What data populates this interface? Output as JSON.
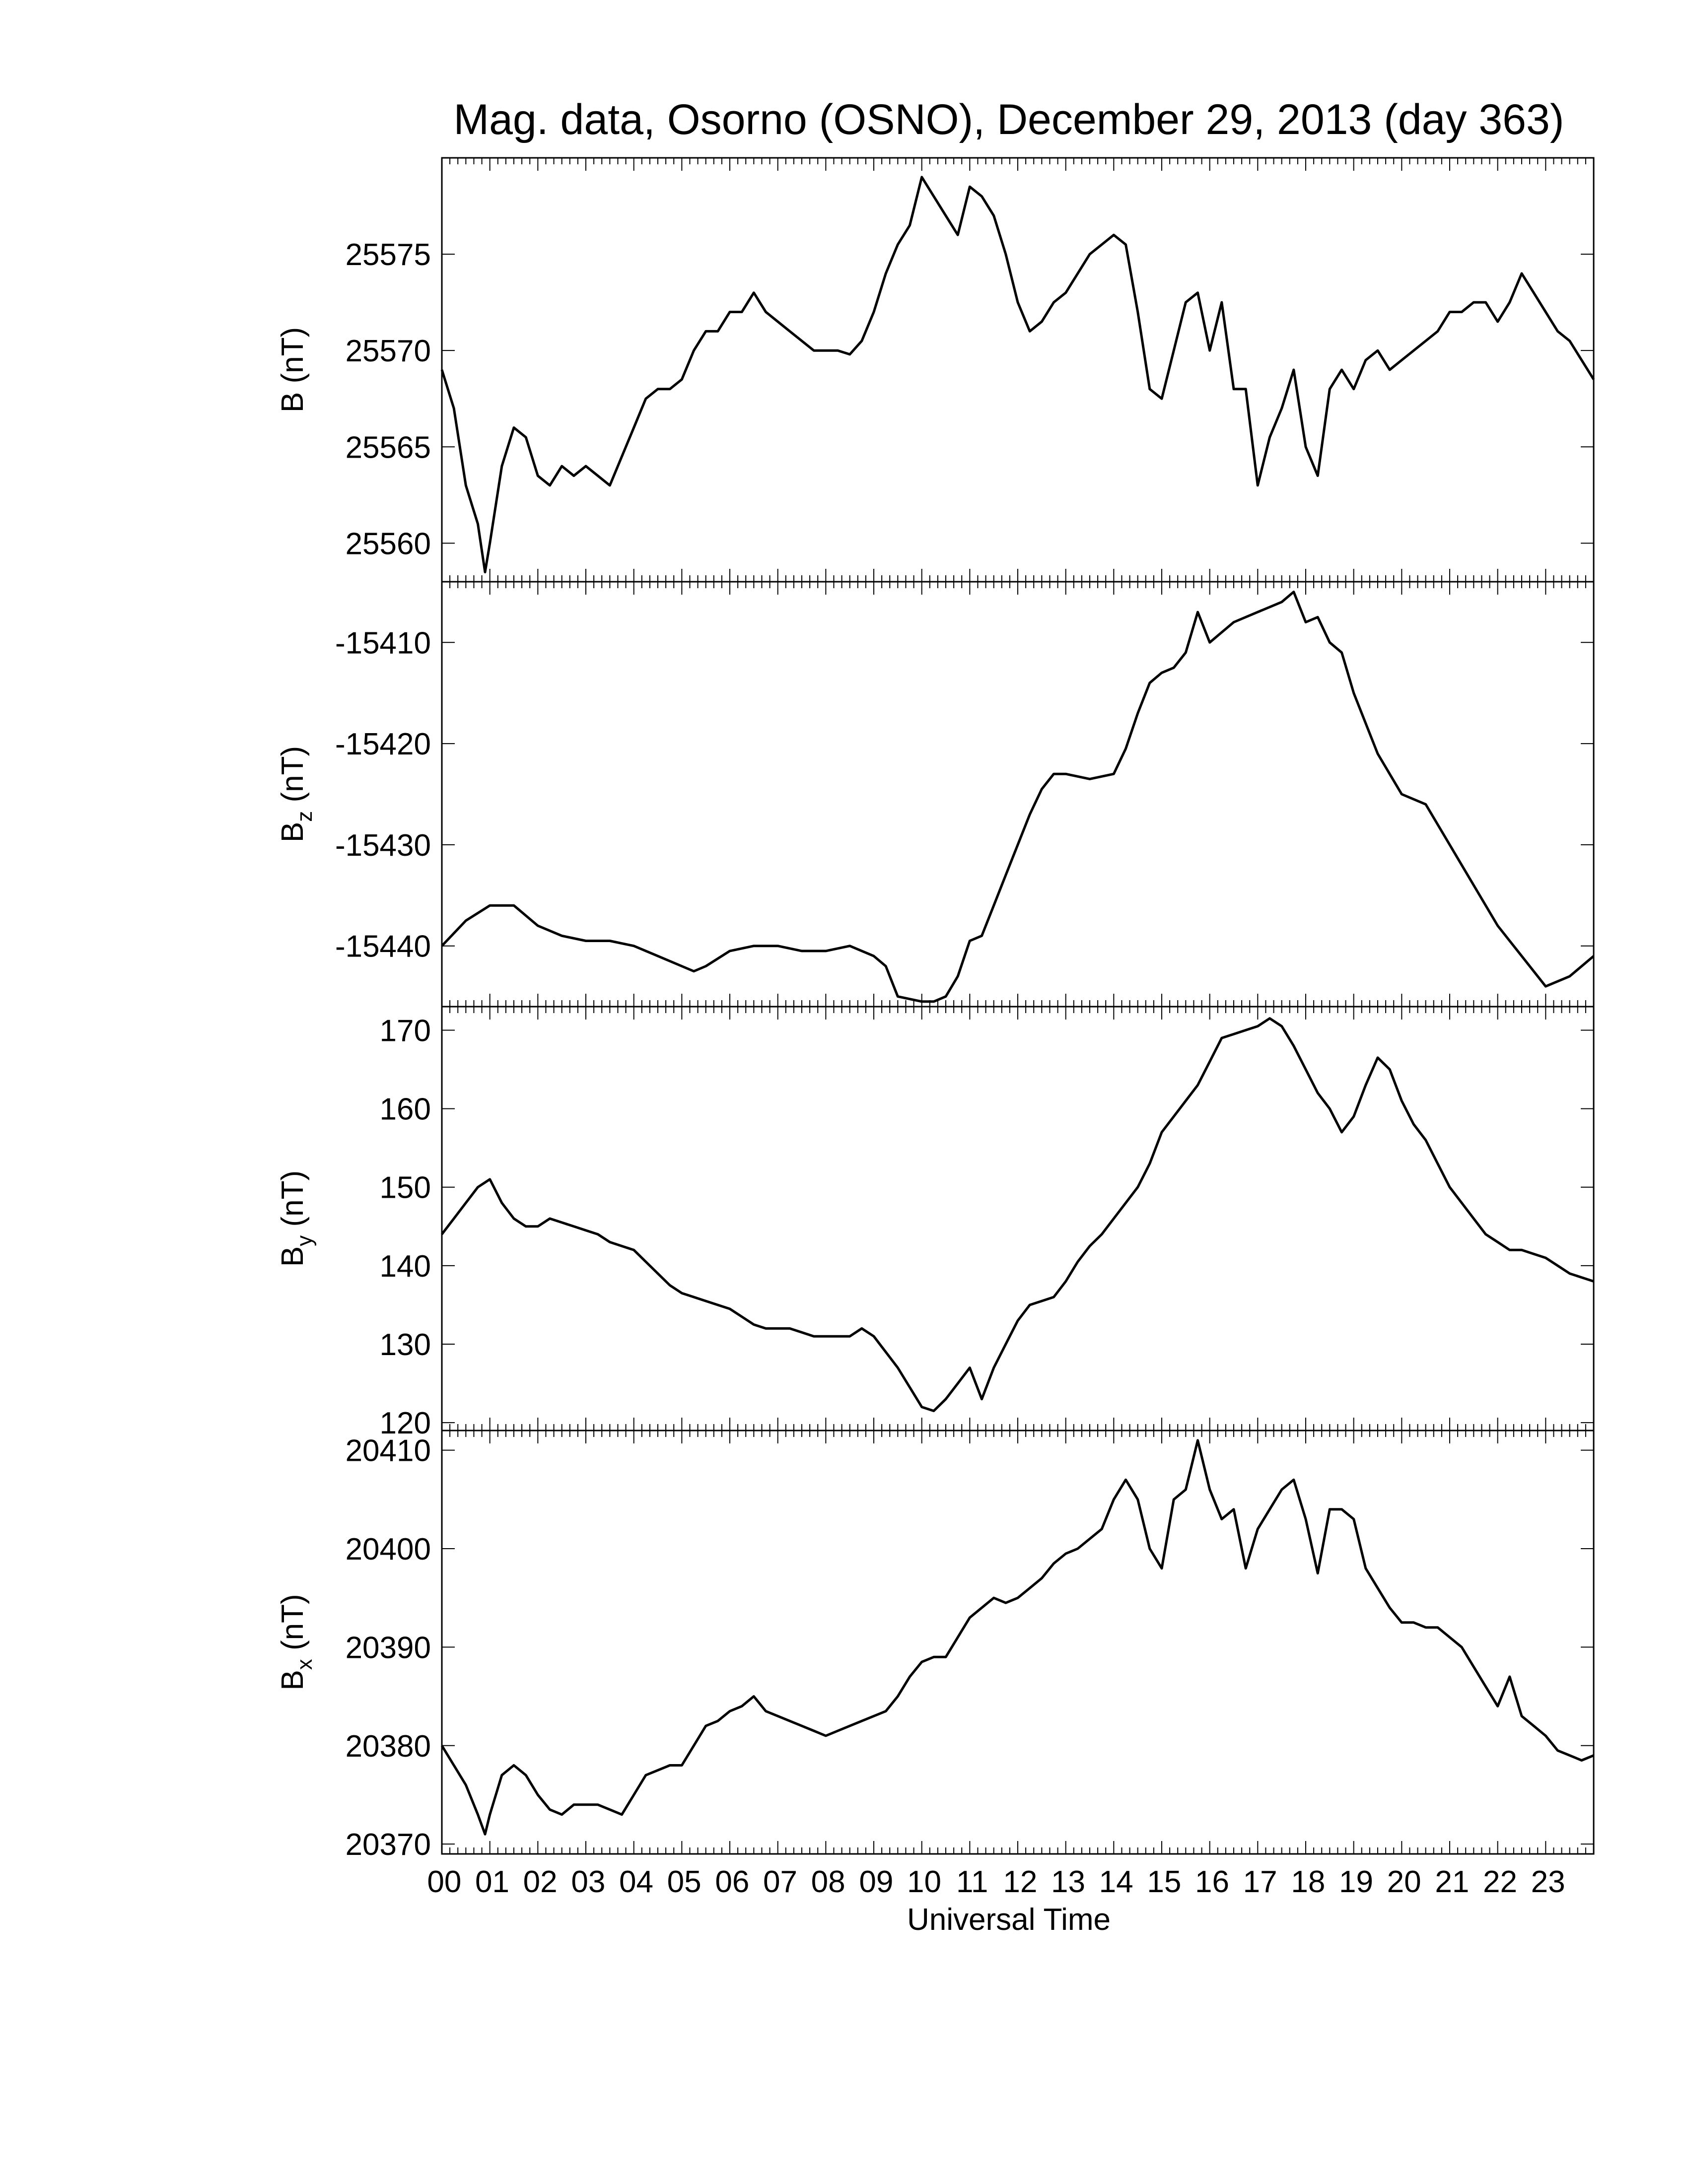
{
  "figure": {
    "title": "Mag. data, Osorno (OSNO), December 29, 2013 (day 363)",
    "xlabel": "Universal Time",
    "x_ticks": [
      "00",
      "01",
      "02",
      "03",
      "04",
      "05",
      "06",
      "07",
      "08",
      "09",
      "10",
      "11",
      "12",
      "13",
      "14",
      "15",
      "16",
      "17",
      "18",
      "19",
      "20",
      "21",
      "22",
      "23"
    ]
  },
  "chart_data": [
    {
      "type": "line",
      "ylabel_main": "B",
      "ylabel_sub": "",
      "ylabel_unit": "(nT)",
      "ylim": [
        25558,
        25580
      ],
      "yticks": [
        25560,
        25565,
        25570,
        25575
      ],
      "x": [
        0,
        0.25,
        0.5,
        0.75,
        0.9,
        1.0,
        1.25,
        1.5,
        1.75,
        2.0,
        2.25,
        2.5,
        2.75,
        3.0,
        3.25,
        3.5,
        3.75,
        4.0,
        4.25,
        4.5,
        4.75,
        5.0,
        5.25,
        5.5,
        5.75,
        6.0,
        6.25,
        6.5,
        6.75,
        7.0,
        7.25,
        7.5,
        7.75,
        8.0,
        8.25,
        8.5,
        8.75,
        9.0,
        9.25,
        9.5,
        9.75,
        10.0,
        10.25,
        10.5,
        10.75,
        11.0,
        11.25,
        11.5,
        11.75,
        12.0,
        12.25,
        12.5,
        12.75,
        13.0,
        13.25,
        13.5,
        13.75,
        14.0,
        14.25,
        14.5,
        14.75,
        15.0,
        15.25,
        15.5,
        15.75,
        16.0,
        16.25,
        16.5,
        16.75,
        17.0,
        17.25,
        17.5,
        17.75,
        18.0,
        18.25,
        18.5,
        18.75,
        19.0,
        19.25,
        19.5,
        19.75,
        20.0,
        20.25,
        20.5,
        20.75,
        21.0,
        21.25,
        21.5,
        21.75,
        22.0,
        22.25,
        22.5,
        22.75,
        23.0,
        23.25,
        23.5,
        23.75,
        24.0
      ],
      "series": [
        {
          "values": [
            25569,
            25567,
            25563,
            25561,
            25558.5,
            25560,
            25564,
            25566,
            25565.5,
            25563.5,
            25563,
            25564,
            25563.5,
            25564,
            25563.5,
            25563,
            25564.5,
            25566,
            25567.5,
            25568,
            25568,
            25568.5,
            25570,
            25571,
            25571,
            25572,
            25572,
            25573,
            25572,
            25571.5,
            25571,
            25570.5,
            25570,
            25570,
            25570,
            25569.8,
            25570.5,
            25572,
            25574,
            25575.5,
            25576.5,
            25579,
            25578,
            25577,
            25576,
            25578.5,
            25578,
            25577,
            25575,
            25572.5,
            25571,
            25571.5,
            25572.5,
            25573,
            25574,
            25575,
            25575.5,
            25576,
            25575.5,
            25572,
            25568,
            25567.5,
            25570,
            25572.5,
            25573,
            25570,
            25572.5,
            25568,
            25568,
            25563,
            25565.5,
            25567,
            25569,
            25565,
            25563.5,
            25568,
            25569,
            25568,
            25569.5,
            25570,
            25569,
            25569.5,
            25570,
            25570.5,
            25571,
            25572,
            25572,
            25572.5,
            25572.5,
            25571.5,
            25572.5,
            25574,
            25573,
            25572,
            25571,
            25570.5,
            25569.5,
            25568.5
          ]
        }
      ]
    },
    {
      "type": "line",
      "ylabel_main": "B",
      "ylabel_sub": "z",
      "ylabel_unit": "(nT)",
      "ylim": [
        -15446,
        -15404
      ],
      "yticks": [
        -15410,
        -15420,
        -15430,
        -15440
      ],
      "x": [
        0,
        0.5,
        1.0,
        1.25,
        1.5,
        1.75,
        2.0,
        2.5,
        3.0,
        3.5,
        4.0,
        4.5,
        5.0,
        5.25,
        5.5,
        6.0,
        6.5,
        7.0,
        7.5,
        8.0,
        8.5,
        9.0,
        9.25,
        9.5,
        10.0,
        10.25,
        10.5,
        10.75,
        11.0,
        11.25,
        11.5,
        11.75,
        12.0,
        12.25,
        12.5,
        12.75,
        13.0,
        13.5,
        14.0,
        14.25,
        14.5,
        14.75,
        15.0,
        15.25,
        15.5,
        15.75,
        16.0,
        16.25,
        16.5,
        17.0,
        17.5,
        17.75,
        18.0,
        18.25,
        18.5,
        18.75,
        19.0,
        19.5,
        20.0,
        20.5,
        21.0,
        21.5,
        22.0,
        22.5,
        22.75,
        23.0,
        23.5,
        24.0
      ],
      "series": [
        {
          "values": [
            -15440,
            -15437.5,
            -15436,
            -15436,
            -15436,
            -15437,
            -15438,
            -15439,
            -15439.5,
            -15439.5,
            -15440,
            -15441,
            -15442,
            -15442.5,
            -15442,
            -15440.5,
            -15440,
            -15440,
            -15440.5,
            -15440.5,
            -15440,
            -15441,
            -15442,
            -15445,
            -15445.5,
            -15445.5,
            -15445,
            -15443,
            -15439.5,
            -15439,
            -15436,
            -15433,
            -15430,
            -15427,
            -15424.5,
            -15423,
            -15423,
            -15423.5,
            -15423,
            -15420.5,
            -15417,
            -15414,
            -15413,
            -15412.5,
            -15411,
            -15407,
            -15410,
            -15409,
            -15408,
            -15407,
            -15406,
            -15405,
            -15408,
            -15407.5,
            -15410,
            -15411,
            -15415,
            -15421,
            -15425,
            -15426,
            -15430,
            -15434,
            -15438,
            -15441,
            -15442.5,
            -15444,
            -15443,
            -15441
          ]
        }
      ]
    },
    {
      "type": "line",
      "ylabel_main": "B",
      "ylabel_sub": "y",
      "ylabel_unit": "(nT)",
      "ylim": [
        119,
        173
      ],
      "yticks": [
        120,
        130,
        140,
        150,
        160,
        170
      ],
      "x": [
        0,
        0.25,
        0.5,
        0.75,
        1.0,
        1.25,
        1.5,
        1.75,
        2.0,
        2.25,
        2.5,
        2.75,
        3.0,
        3.25,
        3.5,
        3.75,
        4.0,
        4.25,
        4.5,
        4.75,
        5.0,
        5.25,
        5.5,
        5.75,
        6.0,
        6.25,
        6.5,
        6.75,
        7.0,
        7.25,
        7.5,
        7.75,
        8.0,
        8.25,
        8.5,
        8.75,
        9.0,
        9.25,
        9.5,
        9.75,
        10.0,
        10.25,
        10.5,
        10.75,
        11.0,
        11.25,
        11.5,
        11.75,
        12.0,
        12.25,
        12.5,
        12.75,
        13.0,
        13.25,
        13.5,
        13.75,
        14.0,
        14.25,
        14.5,
        14.75,
        15.0,
        15.25,
        15.5,
        15.75,
        16.0,
        16.25,
        16.5,
        16.75,
        17.0,
        17.25,
        17.5,
        17.75,
        18.0,
        18.25,
        18.5,
        18.75,
        19.0,
        19.25,
        19.5,
        19.75,
        20.0,
        20.25,
        20.5,
        20.75,
        21.0,
        21.25,
        21.5,
        21.75,
        22.0,
        22.25,
        22.5,
        22.75,
        23.0,
        23.25,
        23.5,
        23.75,
        24.0
      ],
      "series": [
        {
          "values": [
            144,
            146,
            148,
            150,
            151,
            148,
            146,
            145,
            145,
            146,
            145.5,
            145,
            144.5,
            144,
            143,
            142.5,
            142,
            140.5,
            139,
            137.5,
            136.5,
            136,
            135.5,
            135,
            134.5,
            133.5,
            132.5,
            132,
            132,
            132,
            131.5,
            131,
            131,
            131,
            131,
            132,
            131,
            129,
            127,
            124.5,
            122,
            121.5,
            123,
            125,
            127,
            123,
            127,
            130,
            133,
            135,
            135.5,
            136,
            138,
            140.5,
            142.5,
            144,
            146,
            148,
            150,
            153,
            157,
            159,
            161,
            163,
            166,
            169,
            169.5,
            170,
            170.5,
            171.5,
            170.5,
            168,
            165,
            162,
            160,
            157,
            159,
            163,
            166.5,
            165,
            161,
            158,
            156,
            153,
            150,
            148,
            146,
            144,
            143,
            142,
            142,
            141.5,
            141,
            140,
            139,
            138.5,
            138
          ]
        }
      ]
    },
    {
      "type": "line",
      "ylabel_main": "B",
      "ylabel_sub": "x",
      "ylabel_unit": "(nT)",
      "ylim": [
        20369,
        20412
      ],
      "yticks": [
        20370,
        20380,
        20390,
        20400,
        20410
      ],
      "x": [
        0,
        0.25,
        0.5,
        0.75,
        0.9,
        1.0,
        1.25,
        1.5,
        1.75,
        2.0,
        2.25,
        2.5,
        2.75,
        3.0,
        3.25,
        3.5,
        3.75,
        4.0,
        4.25,
        4.5,
        4.75,
        5.0,
        5.25,
        5.5,
        5.75,
        6.0,
        6.25,
        6.5,
        6.75,
        7.0,
        7.25,
        7.5,
        7.75,
        8.0,
        8.25,
        8.5,
        8.75,
        9.0,
        9.25,
        9.5,
        9.75,
        10.0,
        10.25,
        10.5,
        10.75,
        11.0,
        11.25,
        11.5,
        11.75,
        12.0,
        12.25,
        12.5,
        12.75,
        13.0,
        13.25,
        13.5,
        13.75,
        14.0,
        14.25,
        14.5,
        14.75,
        15.0,
        15.25,
        15.5,
        15.75,
        16.0,
        16.25,
        16.5,
        16.75,
        17.0,
        17.25,
        17.5,
        17.75,
        18.0,
        18.25,
        18.5,
        18.75,
        19.0,
        19.25,
        19.5,
        19.75,
        20.0,
        20.25,
        20.5,
        20.75,
        21.0,
        21.25,
        21.5,
        21.75,
        22.0,
        22.25,
        22.5,
        22.75,
        23.0,
        23.25,
        23.5,
        23.75,
        24.0
      ],
      "series": [
        {
          "values": [
            20380,
            20378,
            20376,
            20373,
            20371,
            20373,
            20377,
            20378,
            20377,
            20375,
            20373.5,
            20373,
            20374,
            20374,
            20374,
            20373.5,
            20373,
            20375,
            20377,
            20377.5,
            20378,
            20378,
            20380,
            20382,
            20382.5,
            20383.5,
            20384,
            20385,
            20383.5,
            20383,
            20382.5,
            20382,
            20381.5,
            20381,
            20381.5,
            20382,
            20382.5,
            20383,
            20383.5,
            20385,
            20387,
            20388.5,
            20389,
            20389,
            20391,
            20393,
            20394,
            20395,
            20394.5,
            20395,
            20396,
            20397,
            20398.5,
            20399.5,
            20400,
            20401,
            20402,
            20405,
            20407,
            20405,
            20400,
            20398,
            20405,
            20406,
            20411,
            20406,
            20403,
            20404,
            20398,
            20402,
            20404,
            20406,
            20407,
            20403,
            20397.5,
            20404,
            20404,
            20403,
            20398,
            20396,
            20394,
            20392.5,
            20392.5,
            20392,
            20392,
            20391,
            20390,
            20388,
            20386,
            20384,
            20387,
            20383,
            20382,
            20381,
            20379.5,
            20379,
            20378.5,
            20379
          ]
        }
      ]
    }
  ]
}
